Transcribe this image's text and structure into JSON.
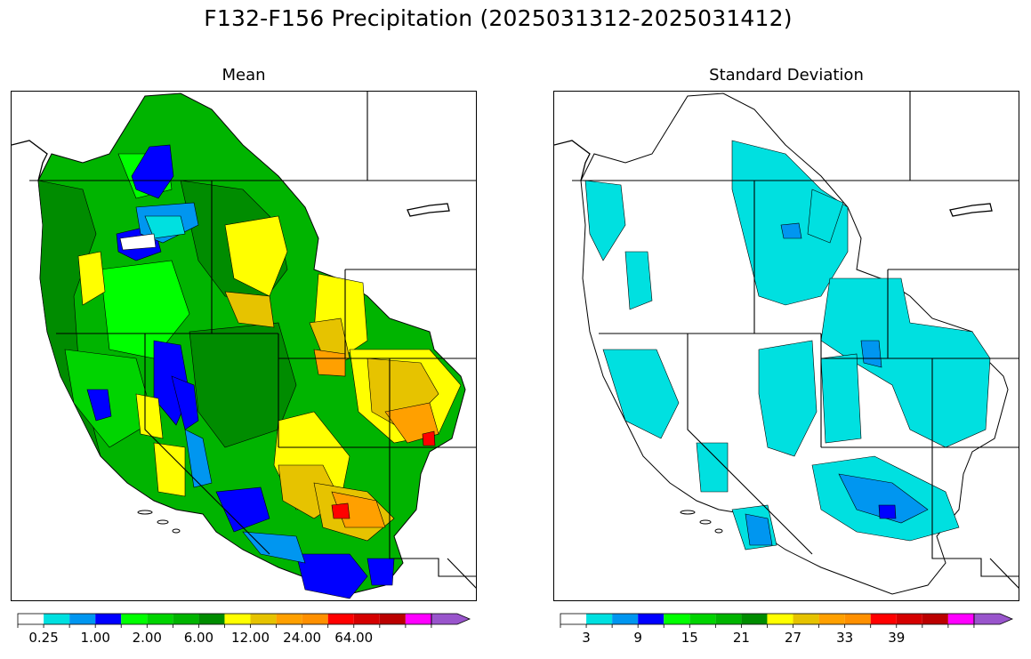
{
  "figure": {
    "title": "F132-F156 Precipitation (2025031312-2025031412)"
  },
  "panels": [
    {
      "id": "mean",
      "title": "Mean",
      "colorbar": {
        "colors": [
          "#ffffff",
          "#00e0e0",
          "#0096f0",
          "#0000ff",
          "#00ff00",
          "#00d400",
          "#00b400",
          "#008c00",
          "#ffff00",
          "#e6c300",
          "#ffa000",
          "#ff9000",
          "#ff0000",
          "#d50000",
          "#bb0000",
          "#ff00ff",
          "#9955cc"
        ],
        "tick_labels": [
          "0.25",
          "1.00",
          "2.00",
          "6.00",
          "12.00",
          "24.00",
          "64.00"
        ],
        "extend": "max"
      }
    },
    {
      "id": "stddev",
      "title": "Standard Deviation",
      "colorbar": {
        "colors": [
          "#ffffff",
          "#00e0e0",
          "#0096f0",
          "#0000ff",
          "#00ff00",
          "#00d400",
          "#00b400",
          "#008c00",
          "#ffff00",
          "#e6c300",
          "#ffa000",
          "#ff9000",
          "#ff0000",
          "#d50000",
          "#bb0000",
          "#ff00ff",
          "#9955cc"
        ],
        "tick_labels": [
          "3",
          "9",
          "15",
          "21",
          "27",
          "33",
          "39"
        ],
        "extend": "max"
      }
    }
  ]
}
